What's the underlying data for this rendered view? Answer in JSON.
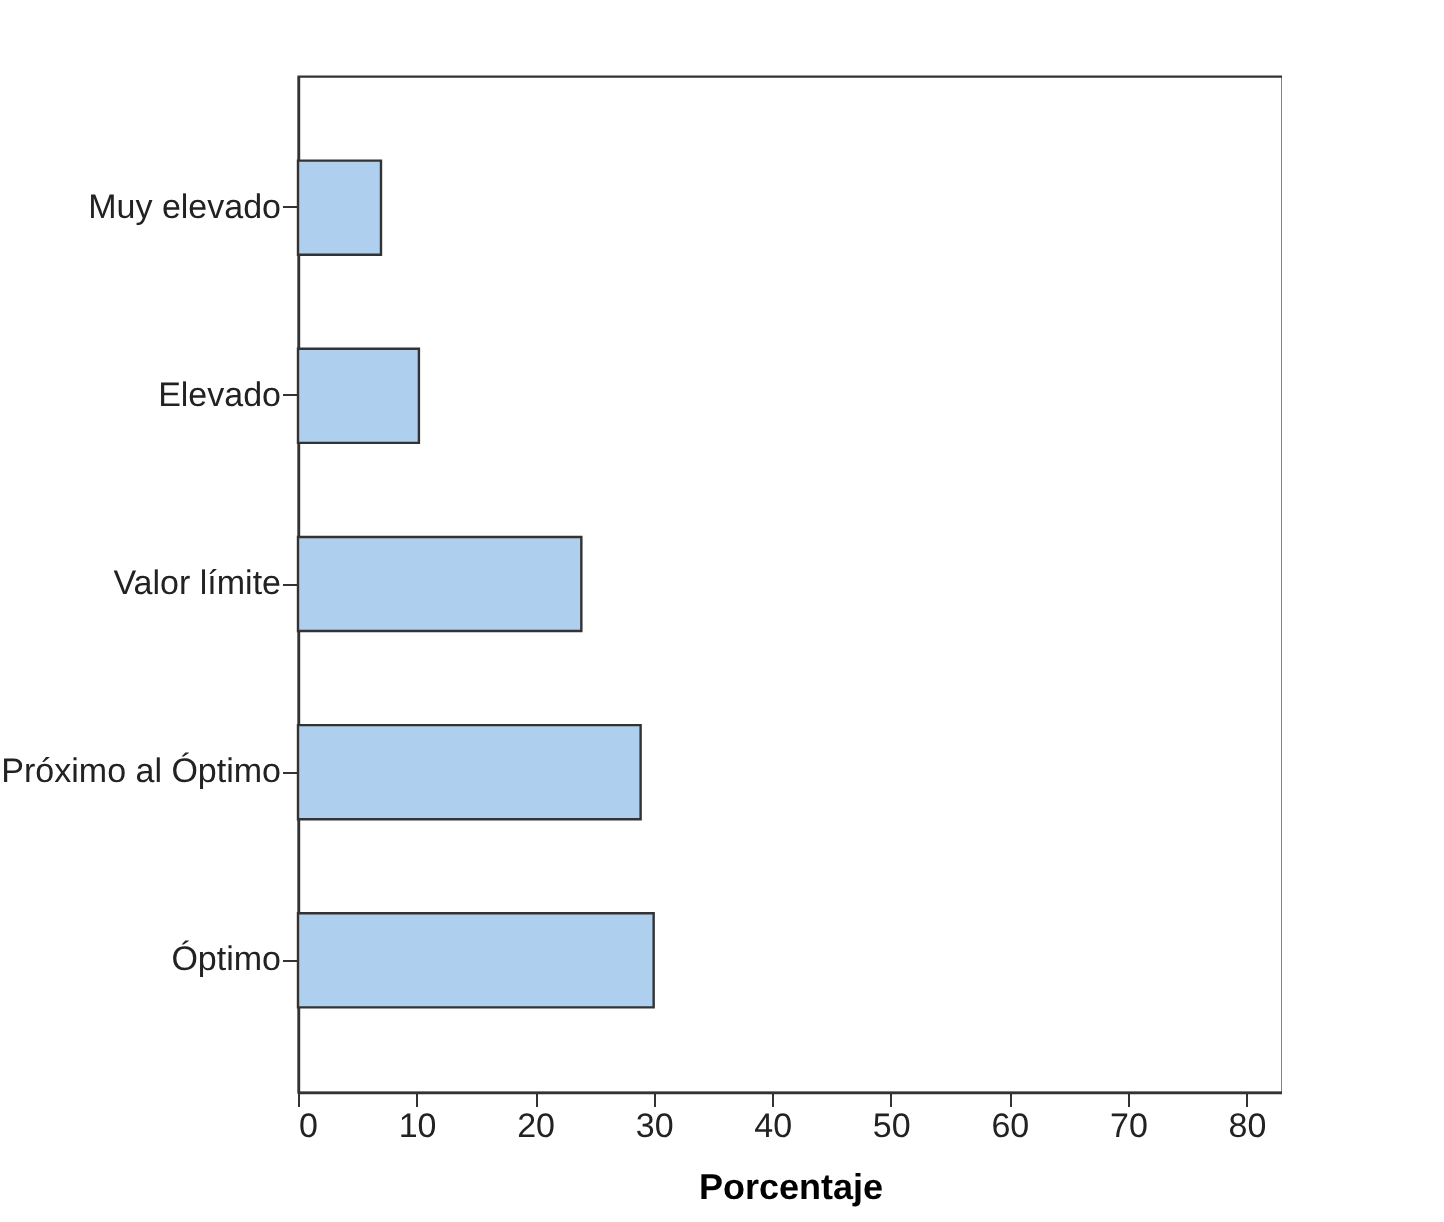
{
  "chart_data": {
    "type": "bar",
    "orientation": "horizontal",
    "xlabel": "Porcentaje",
    "categories": [
      "Muy elevado",
      "Elevado",
      "Valor límite",
      "Próximo al Óptimo",
      "Óptimo"
    ],
    "values": [
      7.0,
      10.2,
      23.9,
      28.9,
      30.0
    ],
    "color": "#aecfee",
    "xlim": [
      0,
      83
    ],
    "xticks": [
      0,
      10,
      20,
      30,
      40,
      50,
      60,
      70,
      80
    ],
    "grid": false
  }
}
